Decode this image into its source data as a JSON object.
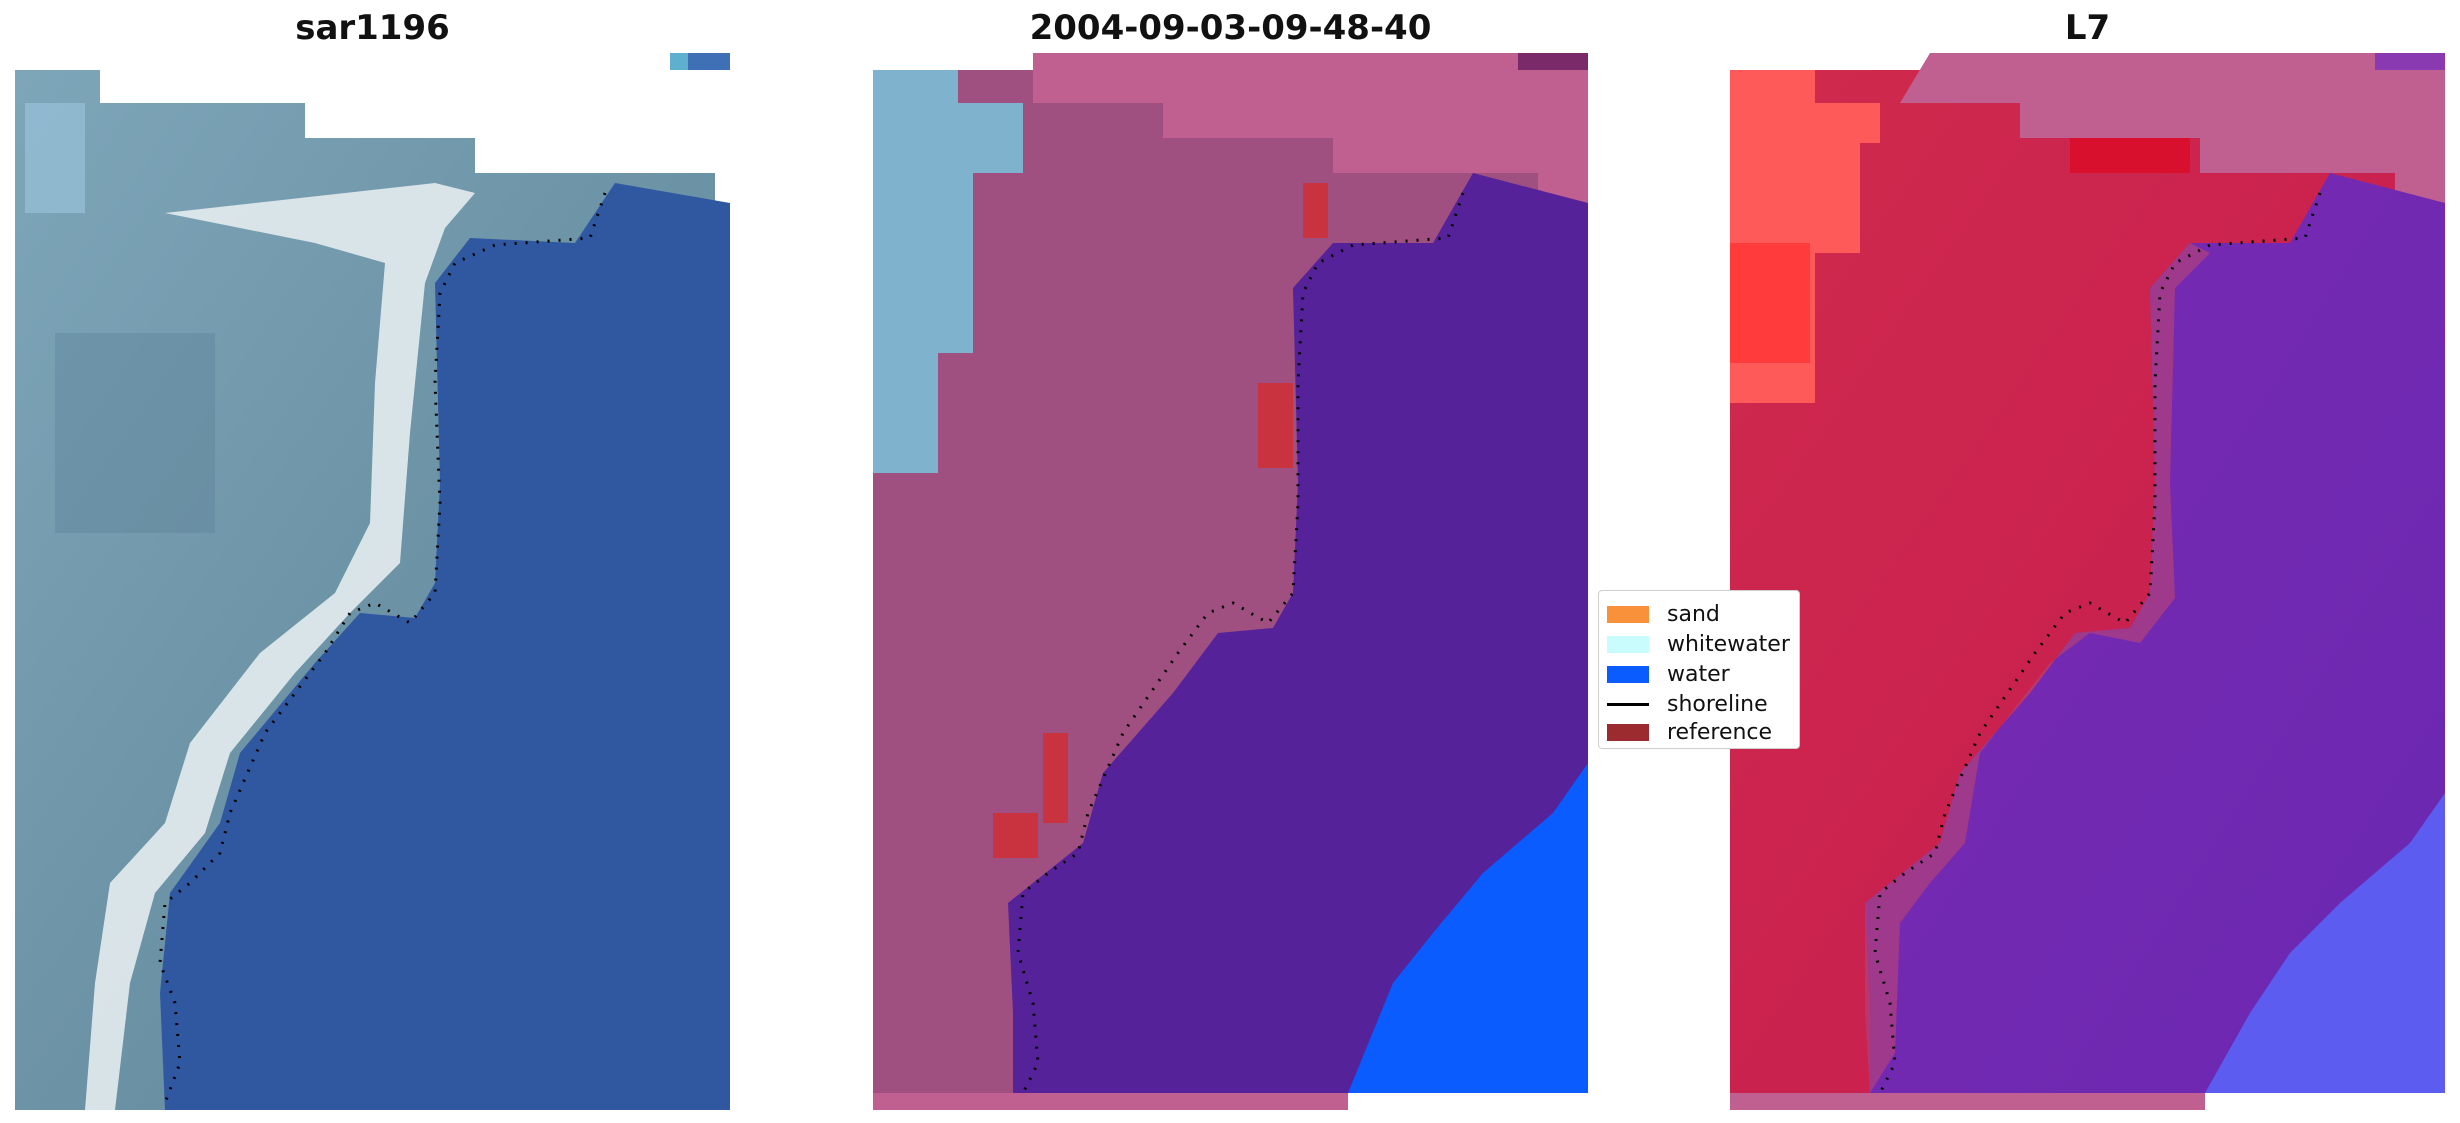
{
  "panels": [
    {
      "title": "sar1196"
    },
    {
      "title": "2004-09-03-09-48-40"
    },
    {
      "title": "L7"
    }
  ],
  "legend": {
    "items": [
      {
        "label": "sand",
        "color": "#f9913a",
        "kind": "patch"
      },
      {
        "label": "whitewater",
        "color": "#c9fdfd",
        "kind": "patch"
      },
      {
        "label": "water",
        "color": "#0a5cff",
        "kind": "patch"
      },
      {
        "label": "shoreline",
        "color": "#000000",
        "kind": "line"
      },
      {
        "label": "reference",
        "color": "#9c2b2f",
        "kind": "patch"
      }
    ]
  },
  "colors": {
    "land_rgb": "#6d93a6",
    "ocean_rgb": "#2f58a1",
    "whitewater_rgb": "#e8eef0",
    "classified_water": "#55229a",
    "classified_land": "#a05080",
    "classified_ocean_far": "#0a5cff",
    "nodata_mask": "#c06090",
    "index_land": "#c51b4f",
    "index_water": "#7a2ab4",
    "index_far": "#5c5cf0",
    "index_high": "#ff3b3b"
  }
}
